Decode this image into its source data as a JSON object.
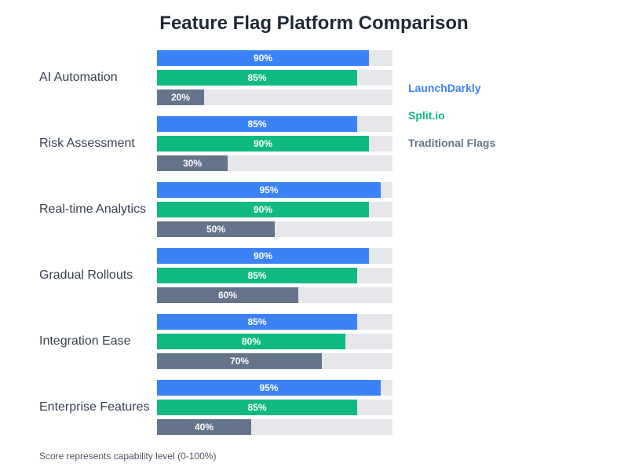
{
  "chart_data": {
    "type": "bar",
    "orientation": "horizontal",
    "title": "Feature Flag Platform Comparison",
    "categories": [
      "AI Automation",
      "Risk Assessment",
      "Real-time Analytics",
      "Gradual Rollouts",
      "Integration Ease",
      "Enterprise Features"
    ],
    "series": [
      {
        "name": "LaunchDarkly",
        "color": "#3b82f6",
        "values": [
          90,
          85,
          95,
          90,
          85,
          95
        ]
      },
      {
        "name": "Split.io",
        "color": "#10b981",
        "values": [
          85,
          90,
          90,
          85,
          80,
          85
        ]
      },
      {
        "name": "Traditional Flags",
        "color": "#64748b",
        "values": [
          20,
          30,
          50,
          60,
          70,
          40
        ]
      }
    ],
    "xlim": [
      0,
      100
    ],
    "value_suffix": "%",
    "legend": "right",
    "footnote": "Score represents capability level (0-100%)"
  }
}
